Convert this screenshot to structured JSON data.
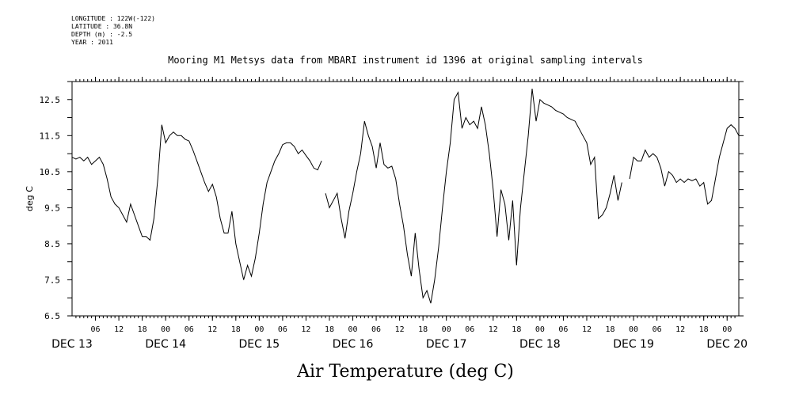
{
  "header": {
    "longitude": "LONGITUDE : 122W(-122)",
    "latitude": "LATITUDE : 36.8N",
    "depth": "DEPTH (m) : -2.5",
    "year": "YEAR : 2011"
  },
  "chart_data": {
    "type": "line",
    "title": "Mooring M1 Metsys data from MBARI instrument id 1396 at original sampling intervals",
    "xlabel": "Air Temperature (deg C)",
    "ylabel": "deg C",
    "ylim": [
      6.5,
      13.0
    ],
    "xlim": [
      "2011-12-13T00:00",
      "2011-12-20T03:00"
    ],
    "y_ticks": [
      6.5,
      7.0,
      7.5,
      8.0,
      8.5,
      9.0,
      9.5,
      10.0,
      10.5,
      11.0,
      11.5,
      12.0,
      12.5,
      13.0
    ],
    "y_tick_labels": [
      "6.5",
      "7.5",
      "8.5",
      "9.5",
      "10.5",
      "11.5",
      "12.5"
    ],
    "x_hour_ticks": [
      "2011-12-13T06:00",
      "2011-12-13T12:00",
      "2011-12-13T18:00",
      "2011-12-14T00:00",
      "2011-12-14T06:00",
      "2011-12-14T12:00",
      "2011-12-14T18:00",
      "2011-12-15T00:00",
      "2011-12-15T06:00",
      "2011-12-15T12:00",
      "2011-12-15T18:00",
      "2011-12-16T00:00",
      "2011-12-16T06:00",
      "2011-12-16T12:00",
      "2011-12-16T18:00",
      "2011-12-17T00:00",
      "2011-12-17T06:00",
      "2011-12-17T12:00",
      "2011-12-17T18:00",
      "2011-12-18T00:00",
      "2011-12-18T06:00",
      "2011-12-18T12:00",
      "2011-12-18T18:00",
      "2011-12-19T00:00",
      "2011-12-19T06:00",
      "2011-12-19T12:00",
      "2011-12-19T18:00",
      "2011-12-20T00:00"
    ],
    "x_hour_labels": [
      "06",
      "12",
      "18",
      "00",
      "06",
      "12",
      "18",
      "00",
      "06",
      "12",
      "18",
      "00",
      "06",
      "12",
      "18",
      "00",
      "06",
      "12",
      "18",
      "00",
      "06",
      "12",
      "18",
      "00",
      "06",
      "12",
      "18",
      "00"
    ],
    "x_day_labels": [
      {
        "label": "DEC 13",
        "date": "2011-12-13T00:00"
      },
      {
        "label": "DEC 14",
        "date": "2011-12-14T00:00"
      },
      {
        "label": "DEC 15",
        "date": "2011-12-15T00:00"
      },
      {
        "label": "DEC 16",
        "date": "2011-12-16T00:00"
      },
      {
        "label": "DEC 17",
        "date": "2011-12-17T00:00"
      },
      {
        "label": "DEC 18",
        "date": "2011-12-18T00:00"
      },
      {
        "label": "DEC 19",
        "date": "2011-12-19T00:00"
      },
      {
        "label": "DEC 20",
        "date": "2011-12-20T00:00"
      }
    ],
    "series": [
      {
        "segments": [
          [
            [
              "2011-12-13T00:00",
              10.9
            ],
            [
              "2011-12-13T01:00",
              10.85
            ],
            [
              "2011-12-13T02:00",
              10.9
            ],
            [
              "2011-12-13T03:00",
              10.8
            ],
            [
              "2011-12-13T04:00",
              10.9
            ],
            [
              "2011-12-13T05:00",
              10.7
            ],
            [
              "2011-12-13T06:00",
              10.8
            ],
            [
              "2011-12-13T07:00",
              10.9
            ],
            [
              "2011-12-13T08:00",
              10.7
            ],
            [
              "2011-12-13T09:00",
              10.3
            ],
            [
              "2011-12-13T10:00",
              9.8
            ],
            [
              "2011-12-13T11:00",
              9.6
            ],
            [
              "2011-12-13T12:00",
              9.5
            ],
            [
              "2011-12-13T13:00",
              9.3
            ],
            [
              "2011-12-13T14:00",
              9.1
            ],
            [
              "2011-12-13T15:00",
              9.6
            ],
            [
              "2011-12-13T16:00",
              9.3
            ],
            [
              "2011-12-13T17:00",
              9.0
            ],
            [
              "2011-12-13T18:00",
              8.7
            ],
            [
              "2011-12-13T19:00",
              8.7
            ],
            [
              "2011-12-13T20:00",
              8.6
            ],
            [
              "2011-12-13T21:00",
              9.2
            ],
            [
              "2011-12-13T22:00",
              10.3
            ],
            [
              "2011-12-13T23:00",
              11.8
            ],
            [
              "2011-12-14T00:00",
              11.3
            ],
            [
              "2011-12-14T01:00",
              11.5
            ],
            [
              "2011-12-14T02:00",
              11.6
            ],
            [
              "2011-12-14T03:00",
              11.5
            ],
            [
              "2011-12-14T04:00",
              11.5
            ],
            [
              "2011-12-14T05:00",
              11.4
            ],
            [
              "2011-12-14T06:00",
              11.35
            ],
            [
              "2011-12-14T07:00",
              11.1
            ],
            [
              "2011-12-14T08:00",
              10.8
            ],
            [
              "2011-12-14T09:00",
              10.5
            ],
            [
              "2011-12-14T10:00",
              10.2
            ],
            [
              "2011-12-14T11:00",
              9.95
            ],
            [
              "2011-12-14T12:00",
              10.15
            ],
            [
              "2011-12-14T13:00",
              9.8
            ],
            [
              "2011-12-14T14:00",
              9.2
            ],
            [
              "2011-12-14T15:00",
              8.8
            ],
            [
              "2011-12-14T16:00",
              8.8
            ],
            [
              "2011-12-14T17:00",
              9.4
            ],
            [
              "2011-12-14T18:00",
              8.5
            ],
            [
              "2011-12-14T19:00",
              8.0
            ],
            [
              "2011-12-14T20:00",
              7.5
            ],
            [
              "2011-12-14T21:00",
              7.9
            ],
            [
              "2011-12-14T22:00",
              7.6
            ],
            [
              "2011-12-14T23:00",
              8.1
            ],
            [
              "2011-12-15T00:00",
              8.8
            ],
            [
              "2011-12-15T01:00",
              9.6
            ],
            [
              "2011-12-15T02:00",
              10.2
            ],
            [
              "2011-12-15T03:00",
              10.5
            ],
            [
              "2011-12-15T04:00",
              10.8
            ],
            [
              "2011-12-15T05:00",
              11.0
            ],
            [
              "2011-12-15T06:00",
              11.25
            ],
            [
              "2011-12-15T07:00",
              11.3
            ],
            [
              "2011-12-15T08:00",
              11.3
            ],
            [
              "2011-12-15T09:00",
              11.2
            ],
            [
              "2011-12-15T10:00",
              11.0
            ],
            [
              "2011-12-15T11:00",
              11.1
            ],
            [
              "2011-12-15T12:00",
              10.95
            ],
            [
              "2011-12-15T13:00",
              10.8
            ],
            [
              "2011-12-15T14:00",
              10.6
            ],
            [
              "2011-12-15T15:00",
              10.55
            ],
            [
              "2011-12-15T16:00",
              10.8
            ]
          ],
          [
            [
              "2011-12-15T17:00",
              9.9
            ],
            [
              "2011-12-15T18:00",
              9.5
            ],
            [
              "2011-12-15T19:00",
              9.7
            ],
            [
              "2011-12-15T20:00",
              9.9
            ],
            [
              "2011-12-15T21:00",
              9.2
            ],
            [
              "2011-12-15T22:00",
              8.65
            ],
            [
              "2011-12-15T23:00",
              9.4
            ],
            [
              "2011-12-16T00:00",
              9.9
            ],
            [
              "2011-12-16T01:00",
              10.5
            ],
            [
              "2011-12-16T02:00",
              11.0
            ],
            [
              "2011-12-16T03:00",
              11.9
            ],
            [
              "2011-12-16T04:00",
              11.5
            ],
            [
              "2011-12-16T05:00",
              11.2
            ],
            [
              "2011-12-16T06:00",
              10.6
            ],
            [
              "2011-12-16T07:00",
              11.3
            ],
            [
              "2011-12-16T08:00",
              10.7
            ],
            [
              "2011-12-16T09:00",
              10.6
            ],
            [
              "2011-12-16T10:00",
              10.65
            ],
            [
              "2011-12-16T11:00",
              10.3
            ],
            [
              "2011-12-16T12:00",
              9.6
            ],
            [
              "2011-12-16T13:00",
              9.0
            ],
            [
              "2011-12-16T14:00",
              8.2
            ],
            [
              "2011-12-16T15:00",
              7.6
            ],
            [
              "2011-12-16T16:00",
              8.8
            ],
            [
              "2011-12-16T17:00",
              7.8
            ],
            [
              "2011-12-16T18:00",
              7.0
            ],
            [
              "2011-12-16T19:00",
              7.2
            ],
            [
              "2011-12-16T20:00",
              6.85
            ],
            [
              "2011-12-16T21:00",
              7.5
            ],
            [
              "2011-12-16T22:00",
              8.4
            ],
            [
              "2011-12-16T23:00",
              9.5
            ],
            [
              "2011-12-17T00:00",
              10.5
            ],
            [
              "2011-12-17T01:00",
              11.3
            ],
            [
              "2011-12-17T02:00",
              12.5
            ],
            [
              "2011-12-17T03:00",
              12.7
            ],
            [
              "2011-12-17T04:00",
              11.7
            ],
            [
              "2011-12-17T05:00",
              12.0
            ],
            [
              "2011-12-17T06:00",
              11.8
            ],
            [
              "2011-12-17T07:00",
              11.9
            ],
            [
              "2011-12-17T08:00",
              11.7
            ],
            [
              "2011-12-17T09:00",
              12.3
            ],
            [
              "2011-12-17T10:00",
              11.8
            ],
            [
              "2011-12-17T11:00",
              11.0
            ],
            [
              "2011-12-17T12:00",
              10.0
            ],
            [
              "2011-12-17T13:00",
              8.7
            ],
            [
              "2011-12-17T14:00",
              10.0
            ],
            [
              "2011-12-17T15:00",
              9.6
            ],
            [
              "2011-12-17T16:00",
              8.6
            ],
            [
              "2011-12-17T17:00",
              9.7
            ],
            [
              "2011-12-17T18:00",
              7.9
            ],
            [
              "2011-12-17T19:00",
              9.5
            ],
            [
              "2011-12-17T20:00",
              10.5
            ],
            [
              "2011-12-17T21:00",
              11.5
            ],
            [
              "2011-12-17T22:00",
              12.8
            ],
            [
              "2011-12-17T23:00",
              11.9
            ],
            [
              "2011-12-18T00:00",
              12.5
            ],
            [
              "2011-12-18T01:00",
              12.4
            ],
            [
              "2011-12-18T02:00",
              12.35
            ],
            [
              "2011-12-18T03:00",
              12.3
            ],
            [
              "2011-12-18T04:00",
              12.2
            ],
            [
              "2011-12-18T05:00",
              12.15
            ],
            [
              "2011-12-18T06:00",
              12.1
            ],
            [
              "2011-12-18T07:00",
              12.0
            ],
            [
              "2011-12-18T08:00",
              11.95
            ],
            [
              "2011-12-18T09:00",
              11.9
            ],
            [
              "2011-12-18T10:00",
              11.7
            ],
            [
              "2011-12-18T11:00",
              11.5
            ],
            [
              "2011-12-18T12:00",
              11.3
            ],
            [
              "2011-12-18T13:00",
              10.7
            ],
            [
              "2011-12-18T14:00",
              10.9
            ],
            [
              "2011-12-18T15:00",
              9.2
            ],
            [
              "2011-12-18T16:00",
              9.3
            ],
            [
              "2011-12-18T17:00",
              9.5
            ],
            [
              "2011-12-18T18:00",
              9.9
            ],
            [
              "2011-12-18T19:00",
              10.4
            ],
            [
              "2011-12-18T20:00",
              9.7
            ],
            [
              "2011-12-18T21:00",
              10.2
            ]
          ],
          [
            [
              "2011-12-18T23:00",
              10.3
            ],
            [
              "2011-12-19T00:00",
              10.9
            ],
            [
              "2011-12-19T01:00",
              10.8
            ],
            [
              "2011-12-19T02:00",
              10.8
            ],
            [
              "2011-12-19T03:00",
              11.1
            ],
            [
              "2011-12-19T04:00",
              10.9
            ],
            [
              "2011-12-19T05:00",
              11.0
            ],
            [
              "2011-12-19T06:00",
              10.9
            ],
            [
              "2011-12-19T07:00",
              10.6
            ],
            [
              "2011-12-19T08:00",
              10.1
            ],
            [
              "2011-12-19T09:00",
              10.5
            ],
            [
              "2011-12-19T10:00",
              10.4
            ],
            [
              "2011-12-19T11:00",
              10.2
            ],
            [
              "2011-12-19T12:00",
              10.3
            ],
            [
              "2011-12-19T13:00",
              10.2
            ],
            [
              "2011-12-19T14:00",
              10.3
            ],
            [
              "2011-12-19T15:00",
              10.25
            ],
            [
              "2011-12-19T16:00",
              10.3
            ],
            [
              "2011-12-19T17:00",
              10.1
            ],
            [
              "2011-12-19T18:00",
              10.2
            ],
            [
              "2011-12-19T19:00",
              9.6
            ],
            [
              "2011-12-19T20:00",
              9.7
            ],
            [
              "2011-12-19T21:00",
              10.3
            ],
            [
              "2011-12-19T22:00",
              10.9
            ],
            [
              "2011-12-19T23:00",
              11.3
            ],
            [
              "2011-12-20T00:00",
              11.7
            ],
            [
              "2011-12-20T01:00",
              11.8
            ],
            [
              "2011-12-20T02:00",
              11.7
            ],
            [
              "2011-12-20T03:00",
              11.5
            ]
          ]
        ]
      }
    ]
  }
}
